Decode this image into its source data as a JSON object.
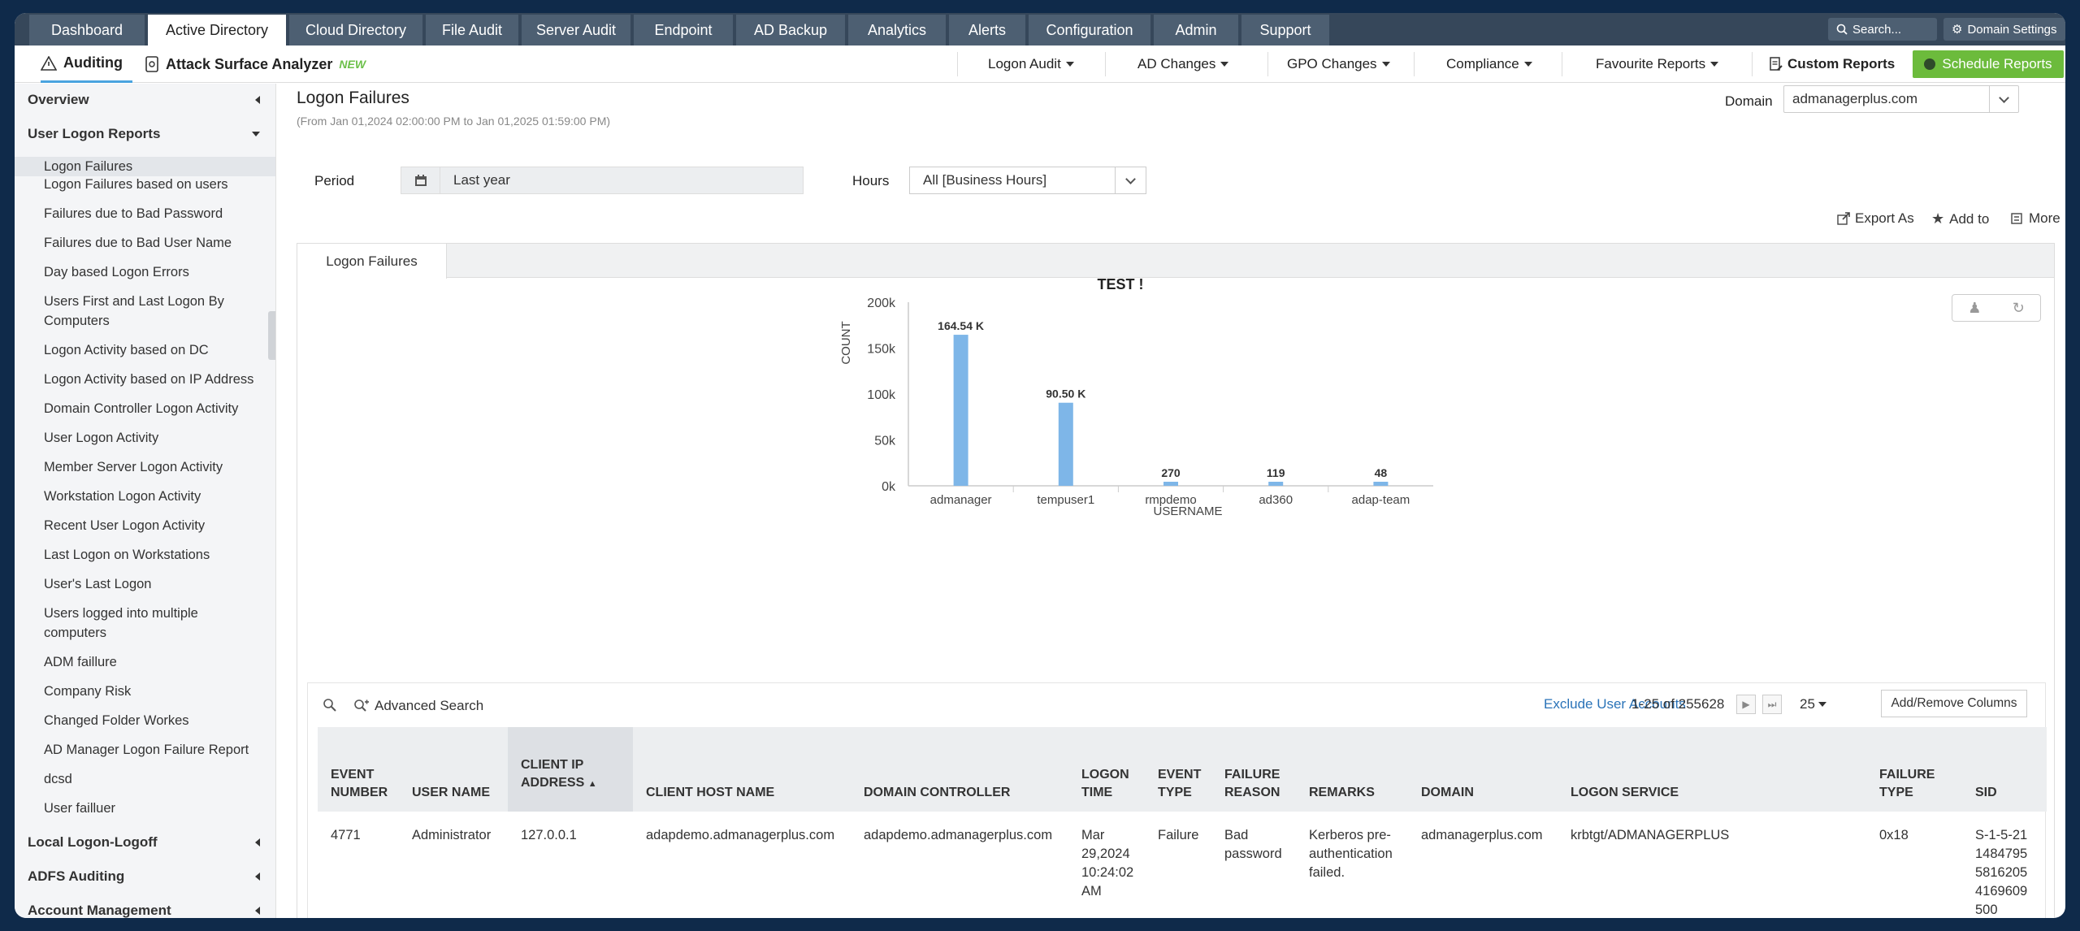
{
  "top_tabs": [
    "Dashboard",
    "Active Directory",
    "Cloud Directory",
    "File Audit",
    "Server Audit",
    "Endpoint",
    "AD Backup",
    "Analytics",
    "Alerts",
    "Configuration",
    "Admin",
    "Support"
  ],
  "search_placeholder": "Search...",
  "domain_settings": "Domain Settings",
  "subnav": {
    "auditing": "Auditing",
    "attack_surface": "Attack Surface Analyzer",
    "new_badge": "NEW",
    "menus": [
      "Logon Audit",
      "AD Changes",
      "GPO Changes",
      "Compliance",
      "Favourite Reports"
    ],
    "custom_reports": "Custom Reports",
    "schedule_reports": "Schedule Reports"
  },
  "sidebar": {
    "overview": "Overview",
    "user_logon_reports": "User Logon Reports",
    "items": [
      "Logon Failures",
      "Logon Failures based on users",
      "Failures due to Bad Password",
      "Failures due to Bad User Name",
      "Day based Logon Errors",
      "Users First and Last Logon By Computers",
      "Logon Activity based on DC",
      "Logon Activity based on IP Address",
      "Domain Controller Logon Activity",
      "User Logon Activity",
      "Member Server Logon Activity",
      "Workstation Logon Activity",
      "Recent User Logon Activity",
      "Last Logon on Workstations",
      "User's Last Logon",
      "Users logged into multiple computers",
      "ADM faillure",
      "Company Risk",
      "Changed Folder Workes",
      "AD Manager Logon Failure Report",
      "dcsd",
      "User failluer"
    ],
    "local_logon": "Local Logon-Logoff",
    "adfs": "ADFS Auditing",
    "account_mgmt": "Account Management"
  },
  "page": {
    "title": "Logon Failures",
    "subtitle": "(From Jan 01,2024 02:00:00 PM to Jan 01,2025 01:59:00 PM)",
    "domain_label": "Domain",
    "domain_value": "admanagerplus.com",
    "period_label": "Period",
    "period_value": "Last year",
    "hours_label": "Hours",
    "hours_value": "All [Business Hours]",
    "export_as": "Export As",
    "add_to": "Add to",
    "more": "More",
    "panel_tab": "Logon Failures"
  },
  "chart_data": {
    "type": "bar",
    "title": "TEST !",
    "xlabel": "USERNAME",
    "ylabel": "COUNT",
    "categories": [
      "admanager",
      "tempuser1",
      "rmpdemo",
      "ad360",
      "adap-team"
    ],
    "values": [
      164540,
      90500,
      270,
      119,
      48
    ],
    "data_labels": [
      "164.54 K",
      "90.50 K",
      "270",
      "119",
      "48"
    ],
    "ylim": [
      0,
      200000
    ],
    "yticks": [
      "0k",
      "50k",
      "100k",
      "150k",
      "200k"
    ],
    "bar_color": "#7eb6e8"
  },
  "table": {
    "advanced_search": "Advanced Search",
    "exclude_users": "Exclude User Accounts",
    "pagination": "1-25 of 255628",
    "per_page": "25",
    "add_remove": "Add/Remove Columns",
    "columns": [
      [
        "EVENT",
        "NUMBER"
      ],
      [
        "USER NAME"
      ],
      [
        "CLIENT IP",
        "ADDRESS"
      ],
      [
        "CLIENT HOST NAME"
      ],
      [
        "DOMAIN CONTROLLER"
      ],
      [
        "LOGON",
        "TIME"
      ],
      [
        "EVENT",
        "TYPE"
      ],
      [
        "FAILURE",
        "REASON"
      ],
      [
        "REMARKS"
      ],
      [
        "DOMAIN"
      ],
      [
        "LOGON SERVICE"
      ],
      [
        "FAILURE",
        "TYPE"
      ],
      [
        "SID"
      ]
    ],
    "row": {
      "event_number": "4771",
      "user_name": "Administrator",
      "client_ip": "127.0.0.1",
      "client_host": "adapdemo.admanagerplus.com",
      "domain_controller": "adapdemo.admanagerplus.com",
      "logon_time": [
        "Mar",
        "29,2024",
        "10:24:02",
        "AM"
      ],
      "event_type": "Failure",
      "failure_reason": [
        "Bad",
        "password"
      ],
      "remarks": [
        "Kerberos pre-",
        "authentication",
        "failed."
      ],
      "domain": "admanagerplus.com",
      "logon_service": "krbtgt/ADMANAGERPLUS",
      "failure_type": "0x18",
      "sid": [
        "S-1-5-21",
        "1484795",
        "5816205",
        "4169609",
        "500"
      ]
    }
  }
}
